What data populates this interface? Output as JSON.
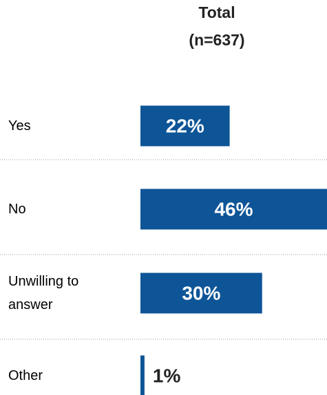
{
  "chart_data": {
    "type": "bar",
    "orientation": "horizontal",
    "title": "Total",
    "subtitle": "(n=637)",
    "categories": [
      "Yes",
      "No",
      "Unwilling to answer",
      "Other"
    ],
    "values": [
      22,
      46,
      30,
      1
    ],
    "value_labels": [
      "22%",
      "46%",
      "30%",
      "1%"
    ],
    "color": "#0e5597"
  }
}
